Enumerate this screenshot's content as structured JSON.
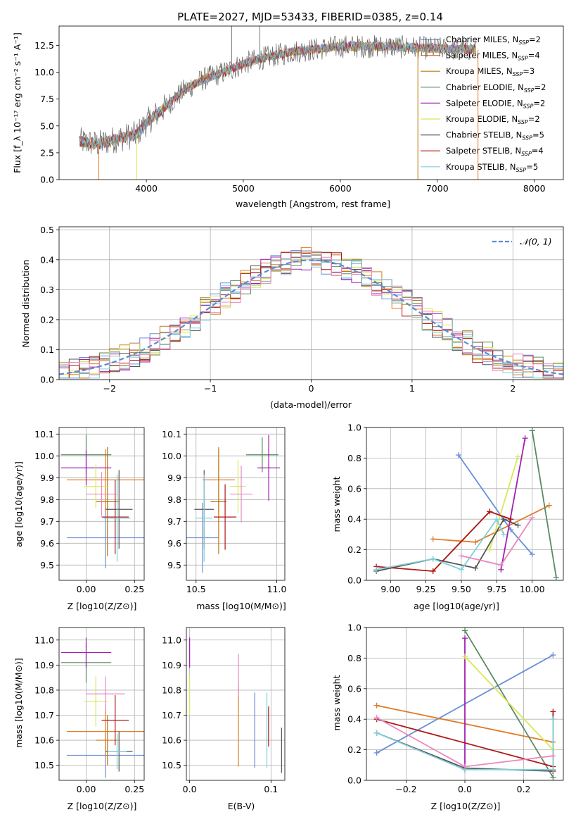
{
  "figure_title": "PLATE=2027, MJD=53433, FIBERID=0385, z=0.14",
  "colors": {
    "Chabrier MILES": "#6a8fd8",
    "Salpeter MILES": "#e07b2a",
    "Kroupa MILES": "#c07810",
    "Chabrier ELODIE": "#5a8a60",
    "Salpeter ELODIE": "#a020b0",
    "Kroupa ELODIE": "#d8e858",
    "Chabrier STELIB": "#555555",
    "Salpeter STELIB": "#b01818",
    "Kroupa STELIB": "#80d0d8",
    "pink": "#e888c0"
  },
  "legend_spectrum": [
    "Chabrier MILES, N_SSP=2",
    "Salpeter MILES, N_SSP=4",
    "Kroupa MILES, N_SSP=3",
    "Chabrier ELODIE, N_SSP=2",
    "Salpeter ELODIE, N_SSP=2",
    "Kroupa ELODIE, N_SSP=2",
    "Chabrier STELIB, N_SSP=5",
    "Salpeter STELIB, N_SSP=4",
    "Kroupa STELIB, N_SSP=5"
  ],
  "legend_hist": "𝒩(0, 1)",
  "chart_data": [
    {
      "id": "spectrum",
      "type": "line",
      "xlabel": "wavelength [Angstrom, rest frame]",
      "ylabel": "Flux [f_λ 10⁻¹⁷ erg cm⁻² s⁻¹ A⁻¹]",
      "xlim": [
        3100,
        8300
      ],
      "ylim": [
        0,
        14.3
      ],
      "xticks": [
        4000,
        5000,
        6000,
        7000,
        8000
      ],
      "yticks": [
        0.0,
        2.5,
        5.0,
        7.5,
        10.0,
        12.5
      ],
      "continuum": [
        [
          3300,
          3.6
        ],
        [
          3500,
          3.3
        ],
        [
          3700,
          3.8
        ],
        [
          3900,
          4.2
        ],
        [
          4000,
          5.3
        ],
        [
          4200,
          6.8
        ],
        [
          4400,
          8.4
        ],
        [
          4600,
          9.4
        ],
        [
          4800,
          10.0
        ],
        [
          5000,
          10.8
        ],
        [
          5200,
          11.3
        ],
        [
          5500,
          11.9
        ],
        [
          5800,
          12.2
        ],
        [
          6000,
          12.4
        ],
        [
          6500,
          12.4
        ],
        [
          7000,
          12.2
        ],
        [
          7400,
          12.1
        ]
      ],
      "spikes": [
        [
          4880,
          14.3
        ],
        [
          5170,
          14.3
        ],
        [
          3510,
          0
        ],
        [
          3900,
          0
        ],
        [
          6800,
          0
        ],
        [
          7420,
          0
        ]
      ]
    },
    {
      "id": "residual-hist",
      "type": "line",
      "xlabel": "(data-model)/error",
      "ylabel": "Normed distribution",
      "xlim": [
        -2.5,
        2.5
      ],
      "ylim": [
        0,
        0.51
      ],
      "xticks": [
        -2,
        -1,
        0,
        1,
        2
      ],
      "yticks": [
        0.0,
        0.1,
        0.2,
        0.3,
        0.4,
        0.5
      ],
      "series_name": "𝒩(0, 1)",
      "bin_width": 0.1,
      "gaussian_mean": 0,
      "gaussian_sigma": 1
    },
    {
      "id": "age-vs-Z",
      "type": "scatter",
      "xlabel": "Z [log10(Z/Z⊙)]",
      "ylabel": "age [log10(age/yr)]",
      "xlim": [
        -0.14,
        0.3
      ],
      "ylim": [
        9.43,
        10.13
      ],
      "xticks": [
        0.0,
        0.25
      ],
      "yticks": [
        9.5,
        9.6,
        9.7,
        9.8,
        9.9,
        10.0,
        10.1
      ],
      "points": [
        {
          "series": "Chabrier MILES",
          "x": 0.1,
          "xerr": 0.2,
          "y": 9.625,
          "yerr": 0.14
        },
        {
          "series": "Salpeter MILES",
          "x": 0.1,
          "xerr": 0.2,
          "y": 9.89,
          "yerr": 0.14
        },
        {
          "series": "Kroupa MILES",
          "x": 0.11,
          "xerr": 0.06,
          "y": 9.79,
          "yerr": 0.25
        },
        {
          "series": "Chabrier ELODIE",
          "x": 0.0,
          "xerr": 0.13,
          "y": 10.005,
          "yerr": 0.09
        },
        {
          "series": "Salpeter ELODIE",
          "x": 0.0,
          "xerr": 0.13,
          "y": 9.945,
          "yerr": 0.08
        },
        {
          "series": "Kroupa ELODIE",
          "x": 0.05,
          "xerr": 0.06,
          "y": 9.86,
          "yerr": 0.1
        },
        {
          "series": "Chabrier STELIB",
          "x": 0.17,
          "xerr": 0.07,
          "y": 9.755,
          "yerr": 0.18
        },
        {
          "series": "Salpeter STELIB",
          "x": 0.15,
          "xerr": 0.07,
          "y": 9.72,
          "yerr": 0.17
        },
        {
          "series": "Kroupa STELIB",
          "x": 0.16,
          "xerr": 0.07,
          "y": 9.715,
          "yerr": 0.2
        },
        {
          "series": "pink",
          "x": 0.08,
          "xerr": 0.08,
          "y": 9.825,
          "yerr": 0.1
        }
      ]
    },
    {
      "id": "age-vs-mass",
      "type": "scatter",
      "xlabel": "mass [log10(M/M⊙)]",
      "ylabel": "",
      "xlim": [
        10.44,
        11.05
      ],
      "ylim": [
        9.43,
        10.13
      ],
      "xticks": [
        10.5,
        11.0
      ],
      "yticks": [
        9.5,
        9.6,
        9.7,
        9.8,
        9.9,
        10.0,
        10.1
      ],
      "points": [
        {
          "series": "Chabrier MILES",
          "x": 10.54,
          "xerr": 0.1,
          "y": 9.625,
          "yerr": 0.16
        },
        {
          "series": "Salpeter MILES",
          "x": 10.64,
          "xerr": 0.1,
          "y": 9.89,
          "yerr": 0.15
        },
        {
          "series": "Kroupa MILES",
          "x": 10.64,
          "xerr": 0.05,
          "y": 9.79,
          "yerr": 0.24
        },
        {
          "series": "Chabrier ELODIE",
          "x": 10.91,
          "xerr": 0.1,
          "y": 10.005,
          "yerr": 0.08
        },
        {
          "series": "Salpeter ELODIE",
          "x": 10.95,
          "xerr": 0.07,
          "y": 9.945,
          "yerr": 0.15
        },
        {
          "series": "Kroupa ELODIE",
          "x": 10.76,
          "xerr": 0.05,
          "y": 9.86,
          "yerr": 0.12
        },
        {
          "series": "Chabrier STELIB",
          "x": 10.55,
          "xerr": 0.06,
          "y": 9.755,
          "yerr": 0.18
        },
        {
          "series": "Salpeter STELIB",
          "x": 10.68,
          "xerr": 0.07,
          "y": 9.72,
          "yerr": 0.15
        },
        {
          "series": "Kroupa STELIB",
          "x": 10.55,
          "xerr": 0.05,
          "y": 9.715,
          "yerr": 0.2
        },
        {
          "series": "pink",
          "x": 10.78,
          "xerr": 0.07,
          "y": 9.825,
          "yerr": 0.13
        }
      ]
    },
    {
      "id": "weight-vs-age",
      "type": "line",
      "xlabel": "age [log10(age/yr)]",
      "ylabel": "mass weight",
      "xlim": [
        8.83,
        10.22
      ],
      "ylim": [
        0,
        1.0
      ],
      "xticks": [
        9.0,
        9.25,
        9.5,
        9.75,
        10.0
      ],
      "yticks": [
        0.0,
        0.2,
        0.4,
        0.6,
        0.8,
        1.0
      ],
      "series": [
        {
          "series": "Chabrier MILES",
          "x": [
            9.48,
            9.85,
            10.0
          ],
          "y": [
            0.82,
            0.33,
            0.17
          ]
        },
        {
          "series": "Salpeter MILES",
          "x": [
            9.3,
            9.6,
            10.12
          ],
          "y": [
            0.27,
            0.25,
            0.49
          ]
        },
        {
          "series": "Kroupa MILES",
          "x": [
            9.3,
            9.7,
            9.85
          ],
          "y": [
            0.06,
            0.45,
            0.4
          ]
        },
        {
          "series": "Chabrier ELODIE",
          "x": [
            10.0,
            10.17
          ],
          "y": [
            0.98,
            0.02
          ]
        },
        {
          "series": "Salpeter ELODIE",
          "x": [
            9.78,
            9.95
          ],
          "y": [
            0.07,
            0.93
          ]
        },
        {
          "series": "Kroupa ELODIE",
          "x": [
            9.7,
            9.9
          ],
          "y": [
            0.2,
            0.81
          ]
        },
        {
          "series": "Chabrier STELIB",
          "x": [
            8.9,
            9.3,
            9.6,
            9.8,
            9.9
          ],
          "y": [
            0.06,
            0.14,
            0.08,
            0.4,
            0.36
          ]
        },
        {
          "series": "Salpeter STELIB",
          "x": [
            8.9,
            9.3,
            9.7,
            9.85
          ],
          "y": [
            0.09,
            0.06,
            0.45,
            0.4
          ]
        },
        {
          "series": "Kroupa STELIB",
          "x": [
            8.9,
            9.3,
            9.5,
            9.75,
            9.8
          ],
          "y": [
            0.07,
            0.14,
            0.07,
            0.4,
            0.3
          ]
        },
        {
          "series": "pink",
          "x": [
            9.5,
            9.78,
            10.0
          ],
          "y": [
            0.16,
            0.1,
            0.41
          ]
        }
      ]
    },
    {
      "id": "mass-vs-Z",
      "type": "scatter",
      "xlabel": "Z [log10(Z/Z⊙)]",
      "ylabel": "mass [log10(M/M⊙)]",
      "xlim": [
        -0.14,
        0.3
      ],
      "ylim": [
        10.44,
        11.05
      ],
      "xticks": [
        0.0,
        0.25
      ],
      "yticks": [
        10.5,
        10.6,
        10.7,
        10.8,
        10.9,
        11.0
      ],
      "points": [
        {
          "series": "Chabrier MILES",
          "x": 0.1,
          "xerr": 0.2,
          "y": 10.54,
          "yerr": 0.09
        },
        {
          "series": "Salpeter MILES",
          "x": 0.1,
          "xerr": 0.2,
          "y": 10.635,
          "yerr": 0.1
        },
        {
          "series": "Kroupa MILES",
          "x": 0.11,
          "xerr": 0.06,
          "y": 10.6,
          "yerr": 0.1
        },
        {
          "series": "Chabrier ELODIE",
          "x": 0.0,
          "xerr": 0.13,
          "y": 10.91,
          "yerr": 0.08
        },
        {
          "series": "Salpeter ELODIE",
          "x": 0.0,
          "xerr": 0.13,
          "y": 10.95,
          "yerr": 0.06
        },
        {
          "series": "Kroupa ELODIE",
          "x": 0.05,
          "xerr": 0.06,
          "y": 10.755,
          "yerr": 0.1
        },
        {
          "series": "Chabrier STELIB",
          "x": 0.17,
          "xerr": 0.07,
          "y": 10.555,
          "yerr": 0.08
        },
        {
          "series": "Salpeter STELIB",
          "x": 0.15,
          "xerr": 0.07,
          "y": 10.68,
          "yerr": 0.1
        },
        {
          "series": "Kroupa STELIB",
          "x": 0.16,
          "xerr": 0.05,
          "y": 10.555,
          "yerr": 0.07
        },
        {
          "series": "pink",
          "x": 0.1,
          "xerr": 0.1,
          "y": 10.785,
          "yerr": 0.07
        }
      ]
    },
    {
      "id": "mass-vs-EBV",
      "type": "scatter",
      "xlabel": "E(B-V)",
      "ylabel": "",
      "xlim": [
        -0.004,
        0.117
      ],
      "ylim": [
        10.44,
        11.05
      ],
      "xticks": [
        0.0,
        0.1
      ],
      "yticks": [
        10.5,
        10.6,
        10.7,
        10.8,
        10.9,
        11.0
      ],
      "points": [
        {
          "series": "Salpeter ELODIE",
          "x": 0.0,
          "y": 10.95,
          "yerr": 0.06
        },
        {
          "series": "Kroupa ELODIE",
          "x": 0.0,
          "y": 10.78,
          "yerr": 0.08
        },
        {
          "series": "Salpeter MILES",
          "x": 0.06,
          "y": 10.66,
          "yerr": 0.165
        },
        {
          "series": "pink",
          "x": 0.06,
          "y": 10.86,
          "yerr": 0.085
        },
        {
          "series": "Chabrier MILES",
          "x": 0.08,
          "y": 10.64,
          "yerr": 0.15
        },
        {
          "series": "Kroupa STELIB",
          "x": 0.095,
          "y": 10.64,
          "yerr": 0.15
        },
        {
          "series": "Salpeter STELIB",
          "x": 0.097,
          "y": 10.655,
          "yerr": 0.08
        },
        {
          "series": "Chabrier STELIB",
          "x": 0.113,
          "y": 10.56,
          "yerr": 0.09
        }
      ]
    },
    {
      "id": "weight-vs-Z",
      "type": "line",
      "xlabel": "Z [log10(Z/Z⊙)]",
      "ylabel": "mass weight",
      "xlim": [
        -0.335,
        0.335
      ],
      "ylim": [
        0,
        1.0
      ],
      "xticks": [
        -0.2,
        0.0,
        0.2
      ],
      "yticks": [
        0.0,
        0.2,
        0.4,
        0.6,
        0.8,
        1.0
      ],
      "series": [
        {
          "series": "Chabrier MILES",
          "x": [
            -0.3,
            0.3
          ],
          "y": [
            0.18,
            0.82
          ]
        },
        {
          "series": "Salpeter MILES",
          "x": [
            -0.3,
            0.3
          ],
          "y": [
            0.49,
            0.25
          ]
        },
        {
          "series": "Chabrier ELODIE",
          "x": [
            0.0,
            0.3
          ],
          "y": [
            0.98,
            0.02
          ]
        },
        {
          "series": "Salpeter ELODIE",
          "x": [
            0.0,
            0.0
          ],
          "y": [
            0.07,
            0.93
          ]
        },
        {
          "series": "Kroupa ELODIE",
          "x": [
            0.0,
            0.3
          ],
          "y": [
            0.81,
            0.2
          ]
        },
        {
          "series": "Chabrier STELIB",
          "x": [
            -0.3,
            0.0,
            0.3
          ],
          "y": [
            0.31,
            0.08,
            0.06
          ]
        },
        {
          "series": "Salpeter STELIB",
          "x": [
            -0.3,
            0.3
          ],
          "y": [
            0.4,
            0.09
          ]
        },
        {
          "series": "Salpeter STELIB",
          "x": [
            0.3,
            0.3
          ],
          "y": [
            0.06,
            0.45
          ]
        },
        {
          "series": "Kroupa STELIB",
          "x": [
            -0.3,
            0.0,
            0.3
          ],
          "y": [
            0.31,
            0.07,
            0.07
          ]
        },
        {
          "series": "Kroupa STELIB",
          "x": [
            0.3,
            0.3
          ],
          "y": [
            0.07,
            0.4
          ]
        },
        {
          "series": "pink",
          "x": [
            -0.3,
            0.0,
            0.3
          ],
          "y": [
            0.41,
            0.09,
            0.16
          ]
        }
      ]
    }
  ]
}
